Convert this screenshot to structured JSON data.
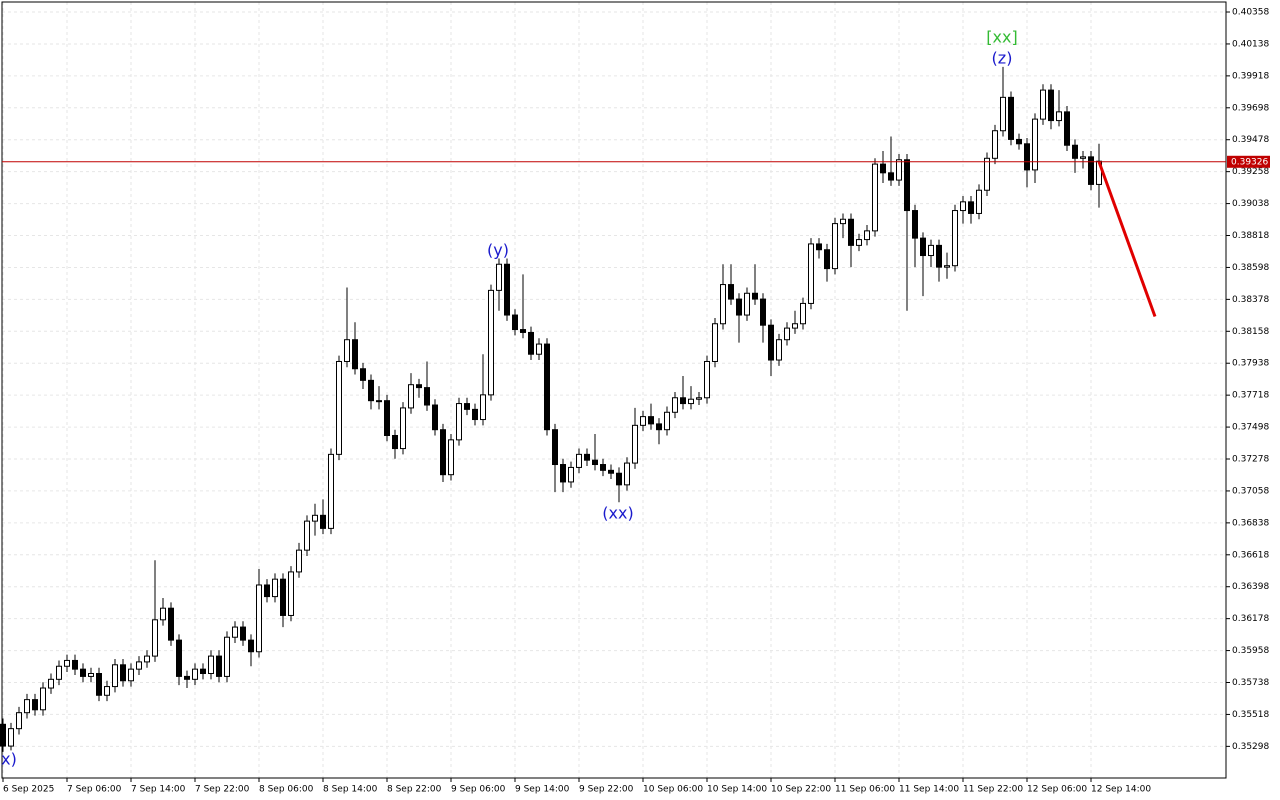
{
  "chart_data": {
    "type": "candlestick",
    "open": [
      0.3545,
      0.353,
      0.3542,
      0.3553,
      0.3562,
      0.3555,
      0.357,
      0.3576,
      0.3585,
      0.3589,
      0.3583,
      0.3578,
      0.358,
      0.3565,
      0.3571,
      0.3586,
      0.3575,
      0.3583,
      0.3588,
      0.3592,
      0.3617,
      0.3625,
      0.3603,
      0.3578,
      0.3576,
      0.3583,
      0.358,
      0.3592,
      0.3578,
      0.3605,
      0.3612,
      0.3603,
      0.3595,
      0.3641,
      0.3633,
      0.3645,
      0.362,
      0.365,
      0.3665,
      0.3685,
      0.3689,
      0.368,
      0.3731,
      0.3795,
      0.381,
      0.379,
      0.3782,
      0.3768,
      0.3768,
      0.3744,
      0.3735,
      0.3763,
      0.3779,
      0.3777,
      0.3765,
      0.3748,
      0.3717,
      0.3741,
      0.3766,
      0.3762,
      0.3755,
      0.3772,
      0.3844,
      0.3862,
      0.3827,
      0.3817,
      0.3815,
      0.38,
      0.3807,
      0.3748,
      0.3724,
      0.3712,
      0.3722,
      0.3731,
      0.3727,
      0.3724,
      0.372,
      0.3718,
      0.371,
      0.3725,
      0.3751,
      0.3757,
      0.3752,
      0.3748,
      0.376,
      0.377,
      0.3766,
      0.3769,
      0.377,
      0.3795,
      0.3821,
      0.3848,
      0.3838,
      0.3827,
      0.3842,
      0.3838,
      0.382,
      0.3796,
      0.381,
      0.3818,
      0.3821,
      0.3835,
      0.3876,
      0.3872,
      0.3859,
      0.389,
      0.3893,
      0.3875,
      0.3879,
      0.3885,
      0.3931,
      0.3925,
      0.392,
      0.3934,
      0.3899,
      0.388,
      0.3868,
      0.3875,
      0.386,
      0.3861,
      0.3899,
      0.3905,
      0.3897,
      0.3913,
      0.3935,
      0.3954,
      0.3977,
      0.3948,
      0.3945,
      0.3927,
      0.3962,
      0.3982,
      0.3961,
      0.3967,
      0.3944,
      0.3935,
      0.3936,
      0.3917
    ],
    "high": [
      0.3549,
      0.3546,
      0.3557,
      0.3566,
      0.3566,
      0.3574,
      0.358,
      0.3589,
      0.3593,
      0.3593,
      0.3587,
      0.3584,
      0.3584,
      0.3575,
      0.359,
      0.359,
      0.3587,
      0.3592,
      0.3596,
      0.3658,
      0.3632,
      0.3629,
      0.3607,
      0.3582,
      0.3587,
      0.3587,
      0.3596,
      0.3596,
      0.3609,
      0.3616,
      0.3616,
      0.3607,
      0.3652,
      0.3645,
      0.3649,
      0.3649,
      0.3654,
      0.367,
      0.3689,
      0.3697,
      0.37,
      0.3735,
      0.3799,
      0.3846,
      0.3822,
      0.3794,
      0.3786,
      0.3778,
      0.3772,
      0.3748,
      0.3767,
      0.3787,
      0.3783,
      0.3795,
      0.3769,
      0.3752,
      0.3745,
      0.377,
      0.377,
      0.3766,
      0.38,
      0.3848,
      0.3866,
      0.3866,
      0.3831,
      0.3855,
      0.3819,
      0.3811,
      0.3811,
      0.3752,
      0.3728,
      0.3726,
      0.3735,
      0.3735,
      0.3745,
      0.3728,
      0.3724,
      0.3722,
      0.3729,
      0.3763,
      0.3761,
      0.3766,
      0.3756,
      0.3764,
      0.3774,
      0.3785,
      0.3778,
      0.3774,
      0.3799,
      0.3825,
      0.3862,
      0.3862,
      0.3842,
      0.3846,
      0.3862,
      0.3842,
      0.3824,
      0.3814,
      0.3822,
      0.383,
      0.3839,
      0.388,
      0.388,
      0.3876,
      0.3894,
      0.3897,
      0.3897,
      0.3883,
      0.3889,
      0.3935,
      0.394,
      0.395,
      0.3938,
      0.3938,
      0.3903,
      0.3884,
      0.3879,
      0.3879,
      0.387,
      0.3903,
      0.3909,
      0.3909,
      0.3917,
      0.3939,
      0.3958,
      0.3998,
      0.3981,
      0.3952,
      0.3949,
      0.3966,
      0.3986,
      0.3986,
      0.3982,
      0.3971,
      0.3948,
      0.394,
      0.394,
      0.3945
    ],
    "low": [
      0.3526,
      0.3527,
      0.3538,
      0.3549,
      0.3551,
      0.3551,
      0.3566,
      0.3572,
      0.3581,
      0.3579,
      0.3574,
      0.3574,
      0.3561,
      0.3561,
      0.3567,
      0.3571,
      0.3571,
      0.3579,
      0.3584,
      0.3588,
      0.3613,
      0.3599,
      0.3572,
      0.357,
      0.3572,
      0.3576,
      0.3576,
      0.3574,
      0.3574,
      0.3601,
      0.3599,
      0.3585,
      0.3591,
      0.3629,
      0.3629,
      0.3612,
      0.3616,
      0.3646,
      0.3661,
      0.3675,
      0.3676,
      0.3676,
      0.3727,
      0.3791,
      0.3786,
      0.3776,
      0.3762,
      0.3762,
      0.374,
      0.3728,
      0.3731,
      0.3759,
      0.377,
      0.3761,
      0.3744,
      0.3712,
      0.3713,
      0.3737,
      0.3758,
      0.3751,
      0.3751,
      0.3768,
      0.383,
      0.3823,
      0.3813,
      0.3811,
      0.3796,
      0.3796,
      0.3744,
      0.3705,
      0.3705,
      0.3708,
      0.3718,
      0.3723,
      0.372,
      0.3716,
      0.3714,
      0.3698,
      0.3706,
      0.3721,
      0.3747,
      0.3748,
      0.3738,
      0.3744,
      0.3756,
      0.3762,
      0.3762,
      0.3765,
      0.3766,
      0.3791,
      0.3817,
      0.3834,
      0.3808,
      0.3823,
      0.3834,
      0.3808,
      0.3785,
      0.3792,
      0.3806,
      0.3814,
      0.3817,
      0.3831,
      0.3866,
      0.385,
      0.3855,
      0.388,
      0.386,
      0.3871,
      0.3875,
      0.3881,
      0.3918,
      0.3916,
      0.3916,
      0.383,
      0.386,
      0.384,
      0.386,
      0.385,
      0.3852,
      0.3857,
      0.389,
      0.389,
      0.3893,
      0.3909,
      0.3931,
      0.395,
      0.3944,
      0.3941,
      0.3915,
      0.3918,
      0.3958,
      0.3955,
      0.3957,
      0.394,
      0.3925,
      0.3928,
      0.3913,
      0.3901
    ],
    "close": [
      0.353,
      0.3542,
      0.3553,
      0.3562,
      0.3555,
      0.357,
      0.3576,
      0.3585,
      0.3589,
      0.3583,
      0.3578,
      0.358,
      0.3565,
      0.3571,
      0.3586,
      0.3575,
      0.3583,
      0.3588,
      0.3592,
      0.3617,
      0.3625,
      0.3603,
      0.3578,
      0.3576,
      0.3583,
      0.358,
      0.3592,
      0.3578,
      0.3605,
      0.3612,
      0.3603,
      0.3595,
      0.3641,
      0.3633,
      0.3645,
      0.362,
      0.365,
      0.3665,
      0.3685,
      0.3689,
      0.368,
      0.3731,
      0.3795,
      0.381,
      0.379,
      0.3782,
      0.3768,
      0.3768,
      0.3744,
      0.3735,
      0.3763,
      0.3779,
      0.3777,
      0.3765,
      0.3748,
      0.3717,
      0.3741,
      0.3766,
      0.3762,
      0.3755,
      0.3772,
      0.3844,
      0.3862,
      0.3827,
      0.3817,
      0.3815,
      0.38,
      0.3807,
      0.3748,
      0.3724,
      0.3712,
      0.3722,
      0.3731,
      0.3727,
      0.3724,
      0.372,
      0.3718,
      0.371,
      0.3725,
      0.3751,
      0.3757,
      0.3752,
      0.3748,
      0.376,
      0.377,
      0.3766,
      0.3769,
      0.377,
      0.3795,
      0.3821,
      0.3848,
      0.3838,
      0.3827,
      0.3842,
      0.3838,
      0.382,
      0.3796,
      0.381,
      0.3818,
      0.3821,
      0.3835,
      0.3876,
      0.3872,
      0.3859,
      0.389,
      0.3893,
      0.3875,
      0.3879,
      0.3885,
      0.3931,
      0.3925,
      0.392,
      0.3934,
      0.3899,
      0.388,
      0.3868,
      0.3875,
      0.386,
      0.3861,
      0.3899,
      0.3905,
      0.3897,
      0.3913,
      0.3935,
      0.3954,
      0.3977,
      0.3948,
      0.3945,
      0.3927,
      0.3962,
      0.3982,
      0.3961,
      0.3967,
      0.3944,
      0.3935,
      0.3936,
      0.3917,
      0.3933
    ],
    "ylim": [
      0.3508,
      0.40427
    ],
    "yticks": [
      0.40358,
      0.40138,
      0.39918,
      0.39698,
      0.39478,
      0.39258,
      0.39038,
      0.38818,
      0.38598,
      0.38378,
      0.38158,
      0.37938,
      0.37718,
      0.37498,
      0.37278,
      0.37058,
      0.36838,
      0.36618,
      0.36398,
      0.36178,
      0.35958,
      0.35738,
      0.35518,
      0.35298
    ],
    "xticks": [
      {
        "value": 0,
        "label": "6 Sep 2025"
      },
      {
        "value": 8,
        "label": "7 Sep 06:00"
      },
      {
        "value": 16,
        "label": "7 Sep 14:00"
      },
      {
        "value": 24,
        "label": "7 Sep 22:00"
      },
      {
        "value": 32,
        "label": "8 Sep 06:00"
      },
      {
        "value": 40,
        "label": "8 Sep 14:00"
      },
      {
        "value": 48,
        "label": "8 Sep 22:00"
      },
      {
        "value": 56,
        "label": "9 Sep 06:00"
      },
      {
        "value": 64,
        "label": "9 Sep 14:00"
      },
      {
        "value": 72,
        "label": "9 Sep 22:00"
      },
      {
        "value": 80,
        "label": "10 Sep 06:00"
      },
      {
        "value": 88,
        "label": "10 Sep 14:00"
      },
      {
        "value": 96,
        "label": "10 Sep 22:00"
      },
      {
        "value": 104,
        "label": "11 Sep 06:00"
      },
      {
        "value": 112,
        "label": "11 Sep 14:00"
      },
      {
        "value": 120,
        "label": "11 Sep 22:00"
      },
      {
        "value": 128,
        "label": "12 Sep 06:00"
      },
      {
        "value": 136,
        "label": "12 Sep 14:00"
      }
    ],
    "grid": true,
    "last_price": 0.39326,
    "last_price_color": "#c00000",
    "projection": {
      "color": "#e00000",
      "x": [
        137,
        144
      ],
      "values": [
        0.39326,
        0.3826
      ]
    },
    "annotations": [
      {
        "text": "x)",
        "color": "#1a1acc"
      },
      {
        "text": "(y)",
        "color": "#1a1acc"
      },
      {
        "text": "(xx)",
        "color": "#1a1acc"
      },
      {
        "text": "(z)",
        "color": "#1a1acc"
      },
      {
        "text": "[xx]",
        "color": "#33bb33"
      }
    ]
  }
}
